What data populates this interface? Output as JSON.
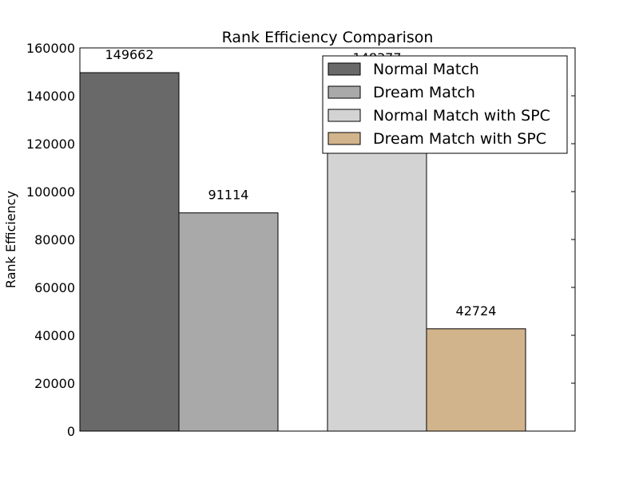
{
  "chart_data": {
    "type": "bar",
    "title": "Rank Efficiency Comparison",
    "xlabel": "",
    "ylabel": "Rank Efficiency",
    "ylim": [
      0,
      160000
    ],
    "yticks": [
      0,
      20000,
      40000,
      60000,
      80000,
      100000,
      120000,
      140000,
      160000
    ],
    "grid": false,
    "legend_position": "top-right",
    "groups": [
      {
        "bars": [
          {
            "series": "Normal Match",
            "value": 149662,
            "label": "149662"
          },
          {
            "series": "Dream Match",
            "value": 91114,
            "label": "91114"
          }
        ]
      },
      {
        "bars": [
          {
            "series": "Normal Match with SPC",
            "value": 148377,
            "label": "148377"
          },
          {
            "series": "Dream Match with SPC",
            "value": 42724,
            "label": "42724"
          }
        ]
      }
    ],
    "series": [
      {
        "name": "Normal Match",
        "color": "#696969"
      },
      {
        "name": "Dream Match",
        "color": "#a9a9a9"
      },
      {
        "name": "Normal Match with SPC",
        "color": "#d3d3d3"
      },
      {
        "name": "Dream Match with SPC",
        "color": "#d2b48c"
      }
    ]
  }
}
